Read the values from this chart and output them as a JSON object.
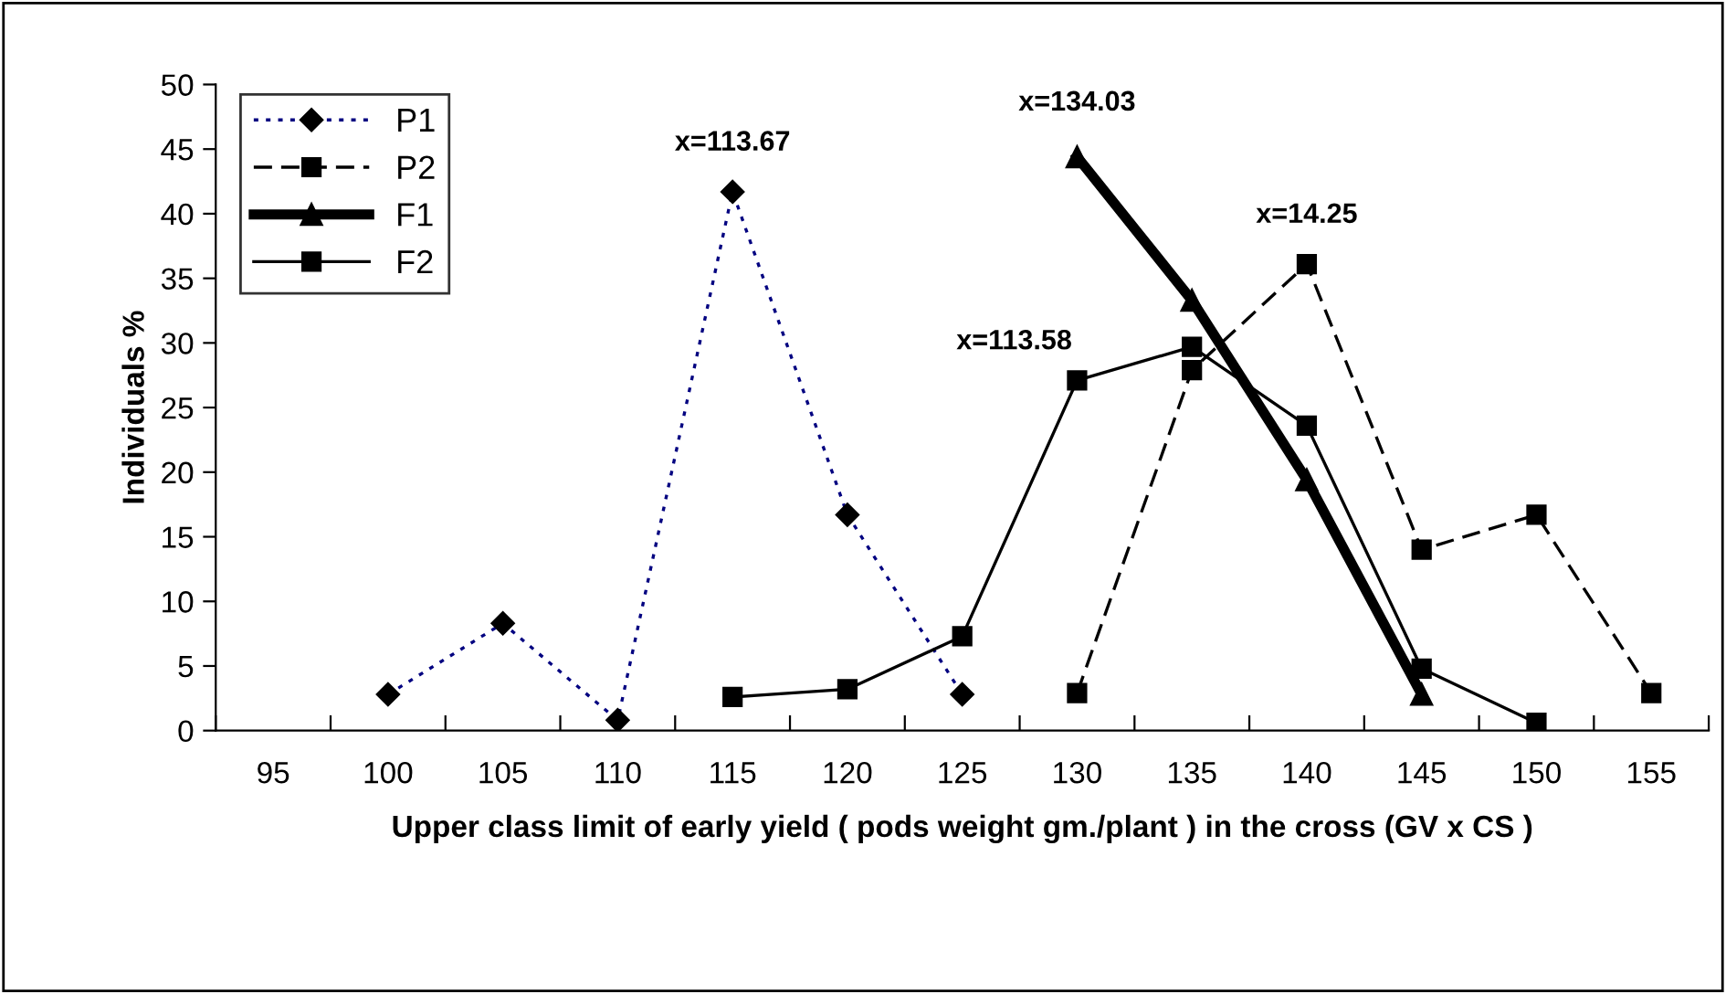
{
  "chart_data": {
    "type": "line",
    "xlabel": "Upper class limit of early yield ( pods weight gm./plant ) in the cross (GV x CS )",
    "ylabel": "Individuals %",
    "categories": [
      "95",
      "100",
      "105",
      "110",
      "115",
      "120",
      "125",
      "130",
      "135",
      "140",
      "145",
      "150",
      "155"
    ],
    "series": [
      {
        "name": "P1",
        "color": "#000080",
        "marker": "diamond",
        "line_style": "dotted",
        "values": [
          null,
          2.8,
          8.3,
          0.8,
          41.7,
          16.7,
          2.8,
          null,
          null,
          null,
          null,
          null,
          null
        ]
      },
      {
        "name": "P2",
        "color": "#000000",
        "marker": "square",
        "line_style": "dashed",
        "values": [
          null,
          null,
          null,
          null,
          null,
          null,
          null,
          2.9,
          27.9,
          36.1,
          14.0,
          16.7,
          2.9
        ]
      },
      {
        "name": "F1",
        "color": "#000000",
        "marker": "triangle",
        "line_style": "solid",
        "values": [
          null,
          null,
          null,
          null,
          null,
          null,
          null,
          44.4,
          33.3,
          19.4,
          2.8,
          null,
          null
        ]
      },
      {
        "name": "F2",
        "color": "#000000",
        "marker": "square",
        "line_style": "solid",
        "values": [
          null,
          null,
          null,
          null,
          2.6,
          3.2,
          7.3,
          27.1,
          29.7,
          23.6,
          4.8,
          0.6,
          null
        ]
      }
    ],
    "annotations": [
      {
        "text": "x=113.67",
        "x": "115",
        "y": 41.7
      },
      {
        "text": "x=134.03",
        "x": "130",
        "y": 44.4
      },
      {
        "text": "x=14.25",
        "x": "140",
        "y": 36.1
      },
      {
        "text": "x=113.58",
        "x": "130",
        "y": 27.1
      }
    ],
    "ylim": [
      0,
      50
    ],
    "yticks": [
      0,
      5,
      10,
      15,
      20,
      25,
      30,
      35,
      40,
      45,
      50
    ],
    "grid": false,
    "legend": "top left"
  }
}
